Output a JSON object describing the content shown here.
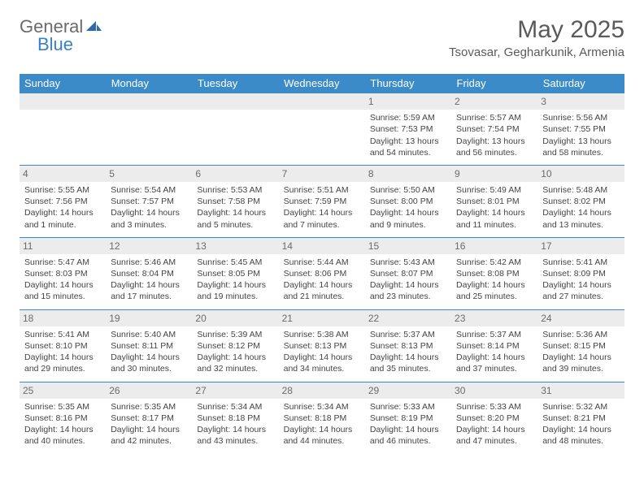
{
  "logo": {
    "part1": "General",
    "part2": "Blue"
  },
  "title": "May 2025",
  "location": "Tsovasar, Gegharkunik, Armenia",
  "colors": {
    "header_bg": "#3b8bc9",
    "header_text": "#ffffff",
    "date_bg": "#ececec",
    "border": "#3b8bc9",
    "text": "#444444",
    "logo_gray": "#6b6b6b",
    "logo_blue": "#3b7fc4"
  },
  "dayNames": [
    "Sunday",
    "Monday",
    "Tuesday",
    "Wednesday",
    "Thursday",
    "Friday",
    "Saturday"
  ],
  "weeks": [
    [
      null,
      null,
      null,
      null,
      {
        "n": "1",
        "sr": "Sunrise: 5:59 AM",
        "ss": "Sunset: 7:53 PM",
        "dl": "Daylight: 13 hours and 54 minutes."
      },
      {
        "n": "2",
        "sr": "Sunrise: 5:57 AM",
        "ss": "Sunset: 7:54 PM",
        "dl": "Daylight: 13 hours and 56 minutes."
      },
      {
        "n": "3",
        "sr": "Sunrise: 5:56 AM",
        "ss": "Sunset: 7:55 PM",
        "dl": "Daylight: 13 hours and 58 minutes."
      }
    ],
    [
      {
        "n": "4",
        "sr": "Sunrise: 5:55 AM",
        "ss": "Sunset: 7:56 PM",
        "dl": "Daylight: 14 hours and 1 minute."
      },
      {
        "n": "5",
        "sr": "Sunrise: 5:54 AM",
        "ss": "Sunset: 7:57 PM",
        "dl": "Daylight: 14 hours and 3 minutes."
      },
      {
        "n": "6",
        "sr": "Sunrise: 5:53 AM",
        "ss": "Sunset: 7:58 PM",
        "dl": "Daylight: 14 hours and 5 minutes."
      },
      {
        "n": "7",
        "sr": "Sunrise: 5:51 AM",
        "ss": "Sunset: 7:59 PM",
        "dl": "Daylight: 14 hours and 7 minutes."
      },
      {
        "n": "8",
        "sr": "Sunrise: 5:50 AM",
        "ss": "Sunset: 8:00 PM",
        "dl": "Daylight: 14 hours and 9 minutes."
      },
      {
        "n": "9",
        "sr": "Sunrise: 5:49 AM",
        "ss": "Sunset: 8:01 PM",
        "dl": "Daylight: 14 hours and 11 minutes."
      },
      {
        "n": "10",
        "sr": "Sunrise: 5:48 AM",
        "ss": "Sunset: 8:02 PM",
        "dl": "Daylight: 14 hours and 13 minutes."
      }
    ],
    [
      {
        "n": "11",
        "sr": "Sunrise: 5:47 AM",
        "ss": "Sunset: 8:03 PM",
        "dl": "Daylight: 14 hours and 15 minutes."
      },
      {
        "n": "12",
        "sr": "Sunrise: 5:46 AM",
        "ss": "Sunset: 8:04 PM",
        "dl": "Daylight: 14 hours and 17 minutes."
      },
      {
        "n": "13",
        "sr": "Sunrise: 5:45 AM",
        "ss": "Sunset: 8:05 PM",
        "dl": "Daylight: 14 hours and 19 minutes."
      },
      {
        "n": "14",
        "sr": "Sunrise: 5:44 AM",
        "ss": "Sunset: 8:06 PM",
        "dl": "Daylight: 14 hours and 21 minutes."
      },
      {
        "n": "15",
        "sr": "Sunrise: 5:43 AM",
        "ss": "Sunset: 8:07 PM",
        "dl": "Daylight: 14 hours and 23 minutes."
      },
      {
        "n": "16",
        "sr": "Sunrise: 5:42 AM",
        "ss": "Sunset: 8:08 PM",
        "dl": "Daylight: 14 hours and 25 minutes."
      },
      {
        "n": "17",
        "sr": "Sunrise: 5:41 AM",
        "ss": "Sunset: 8:09 PM",
        "dl": "Daylight: 14 hours and 27 minutes."
      }
    ],
    [
      {
        "n": "18",
        "sr": "Sunrise: 5:41 AM",
        "ss": "Sunset: 8:10 PM",
        "dl": "Daylight: 14 hours and 29 minutes."
      },
      {
        "n": "19",
        "sr": "Sunrise: 5:40 AM",
        "ss": "Sunset: 8:11 PM",
        "dl": "Daylight: 14 hours and 30 minutes."
      },
      {
        "n": "20",
        "sr": "Sunrise: 5:39 AM",
        "ss": "Sunset: 8:12 PM",
        "dl": "Daylight: 14 hours and 32 minutes."
      },
      {
        "n": "21",
        "sr": "Sunrise: 5:38 AM",
        "ss": "Sunset: 8:13 PM",
        "dl": "Daylight: 14 hours and 34 minutes."
      },
      {
        "n": "22",
        "sr": "Sunrise: 5:37 AM",
        "ss": "Sunset: 8:13 PM",
        "dl": "Daylight: 14 hours and 35 minutes."
      },
      {
        "n": "23",
        "sr": "Sunrise: 5:37 AM",
        "ss": "Sunset: 8:14 PM",
        "dl": "Daylight: 14 hours and 37 minutes."
      },
      {
        "n": "24",
        "sr": "Sunrise: 5:36 AM",
        "ss": "Sunset: 8:15 PM",
        "dl": "Daylight: 14 hours and 39 minutes."
      }
    ],
    [
      {
        "n": "25",
        "sr": "Sunrise: 5:35 AM",
        "ss": "Sunset: 8:16 PM",
        "dl": "Daylight: 14 hours and 40 minutes."
      },
      {
        "n": "26",
        "sr": "Sunrise: 5:35 AM",
        "ss": "Sunset: 8:17 PM",
        "dl": "Daylight: 14 hours and 42 minutes."
      },
      {
        "n": "27",
        "sr": "Sunrise: 5:34 AM",
        "ss": "Sunset: 8:18 PM",
        "dl": "Daylight: 14 hours and 43 minutes."
      },
      {
        "n": "28",
        "sr": "Sunrise: 5:34 AM",
        "ss": "Sunset: 8:18 PM",
        "dl": "Daylight: 14 hours and 44 minutes."
      },
      {
        "n": "29",
        "sr": "Sunrise: 5:33 AM",
        "ss": "Sunset: 8:19 PM",
        "dl": "Daylight: 14 hours and 46 minutes."
      },
      {
        "n": "30",
        "sr": "Sunrise: 5:33 AM",
        "ss": "Sunset: 8:20 PM",
        "dl": "Daylight: 14 hours and 47 minutes."
      },
      {
        "n": "31",
        "sr": "Sunrise: 5:32 AM",
        "ss": "Sunset: 8:21 PM",
        "dl": "Daylight: 14 hours and 48 minutes."
      }
    ]
  ]
}
